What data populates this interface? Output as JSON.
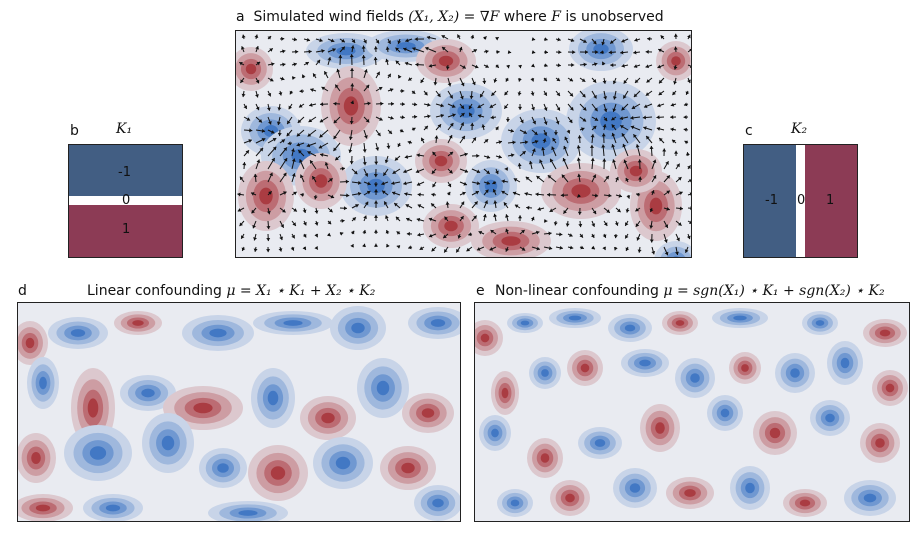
{
  "panel_a": {
    "letter": "a",
    "title_prefix": "Simulated wind fields ",
    "title_math": "(X₁, X₂) = ∇F",
    "title_mid": " where ",
    "title_var": "F",
    "title_suffix": " is unobserved"
  },
  "panel_b": {
    "letter": "b",
    "kernel_name": "K₁",
    "values": [
      "-1",
      "0",
      "1"
    ]
  },
  "panel_c": {
    "letter": "c",
    "kernel_name": "K₂",
    "values": [
      "-1",
      "0",
      "1"
    ]
  },
  "panel_d": {
    "letter": "d",
    "title_prefix": "Linear confounding ",
    "title_math": "μ = X₁ ⋆ K₁ + X₂ ⋆ K₂"
  },
  "panel_e": {
    "letter": "e",
    "title_prefix": "Non-linear confounding ",
    "title_math": "μ = sgn(X₁) ⋆ K₁ + sgn(X₂) ⋆ K₂"
  },
  "colors": {
    "blue_dark": "#2f6bbf",
    "red_dark": "#a3282f",
    "neutral": "#e9ebf1",
    "kernel_neg": "#425e83",
    "kernel_pos": "#8c3b55"
  }
}
